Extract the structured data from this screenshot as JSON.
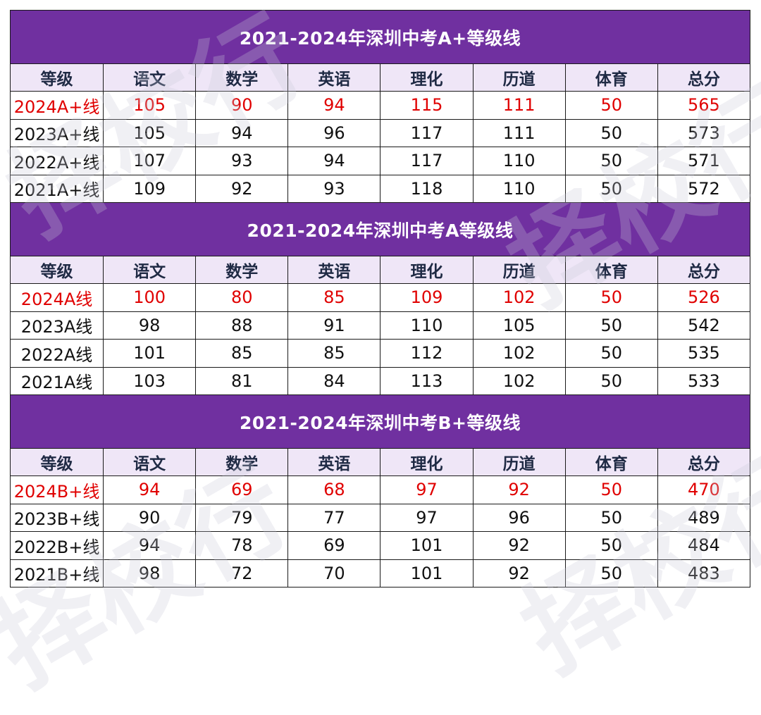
{
  "columns": [
    "等级",
    "语文",
    "数学",
    "英语",
    "理化",
    "历道",
    "体育",
    "总分"
  ],
  "sections": [
    {
      "title": "2021-2024年深圳中考A+等级线",
      "rows": [
        {
          "cells": [
            "2024A+线",
            "105",
            "90",
            "94",
            "115",
            "111",
            "50",
            "565"
          ],
          "highlight": true
        },
        {
          "cells": [
            "2023A+线",
            "105",
            "94",
            "96",
            "117",
            "111",
            "50",
            "573"
          ],
          "highlight": false
        },
        {
          "cells": [
            "2022A+线",
            "107",
            "93",
            "94",
            "117",
            "110",
            "50",
            "571"
          ],
          "highlight": false
        },
        {
          "cells": [
            "2021A+线",
            "109",
            "92",
            "93",
            "118",
            "110",
            "50",
            "572"
          ],
          "highlight": false
        }
      ]
    },
    {
      "title": "2021-2024年深圳中考A等级线",
      "rows": [
        {
          "cells": [
            "2024A线",
            "100",
            "80",
            "85",
            "109",
            "102",
            "50",
            "526"
          ],
          "highlight": true
        },
        {
          "cells": [
            "2023A线",
            "98",
            "88",
            "91",
            "110",
            "105",
            "50",
            "542"
          ],
          "highlight": false
        },
        {
          "cells": [
            "2022A线",
            "101",
            "85",
            "85",
            "112",
            "102",
            "50",
            "535"
          ],
          "highlight": false
        },
        {
          "cells": [
            "2021A线",
            "103",
            "81",
            "84",
            "113",
            "102",
            "50",
            "533"
          ],
          "highlight": false
        }
      ]
    },
    {
      "title": "2021-2024年深圳中考B+等级线",
      "rows": [
        {
          "cells": [
            "2024B+线",
            "94",
            "69",
            "68",
            "97",
            "92",
            "50",
            "470"
          ],
          "highlight": true
        },
        {
          "cells": [
            "2023B+线",
            "90",
            "79",
            "77",
            "97",
            "96",
            "50",
            "489"
          ],
          "highlight": false
        },
        {
          "cells": [
            "2022B+线",
            "94",
            "78",
            "69",
            "101",
            "92",
            "50",
            "484"
          ],
          "highlight": false
        },
        {
          "cells": [
            "2021B+线",
            "98",
            "72",
            "70",
            "101",
            "92",
            "50",
            "483"
          ],
          "highlight": false
        }
      ]
    }
  ],
  "watermark": "择校行",
  "colors": {
    "header_purple": "#7030a0",
    "header_lavender": "#efe6f7",
    "highlight_red": "#e00000"
  }
}
